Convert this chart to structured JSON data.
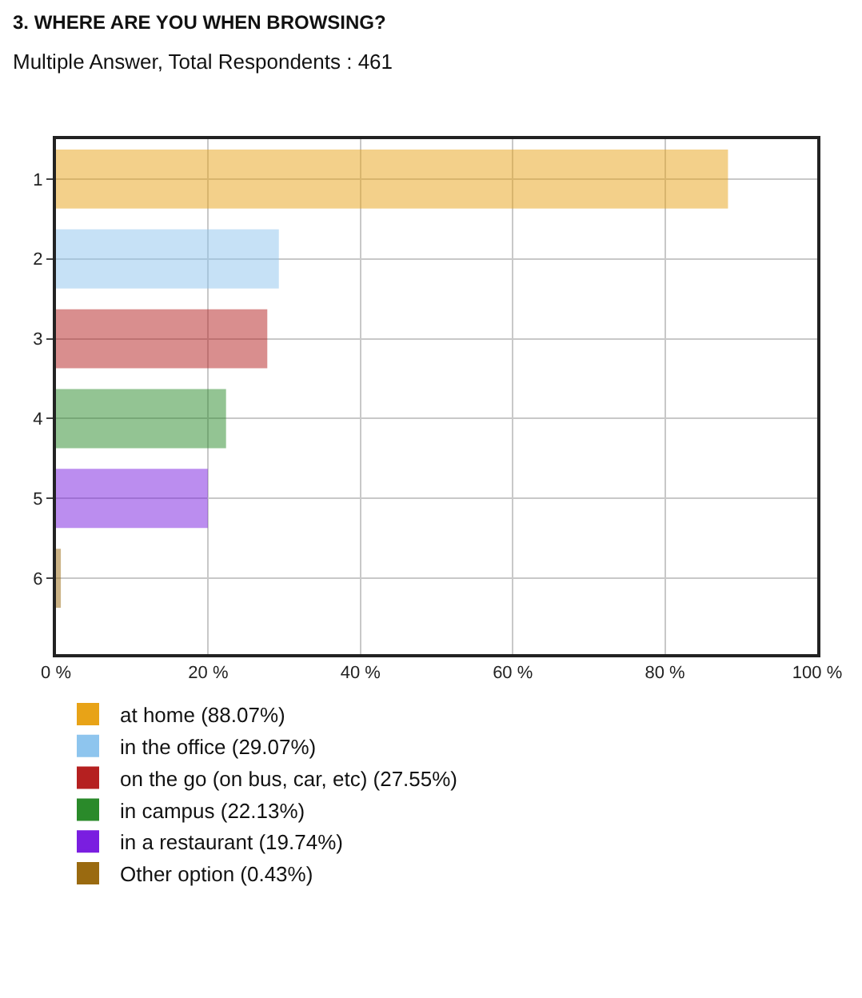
{
  "chart_data": {
    "type": "bar",
    "orientation": "horizontal",
    "title": "3. WHERE ARE YOU WHEN BROWSING?",
    "subtitle": "Multiple Answer, Total Respondents : 461",
    "categories": [
      "1",
      "2",
      "3",
      "4",
      "5",
      "6"
    ],
    "series": [
      {
        "name": "at home (88.07%)",
        "color": "#e8a317",
        "values": [
          88.07,
          null,
          null,
          null,
          null,
          null
        ]
      },
      {
        "name": "in the office (29.07%)",
        "color": "#8ec5ee",
        "values": [
          null,
          29.07,
          null,
          null,
          null,
          null
        ]
      },
      {
        "name": "on the go (on bus, car, etc) (27.55%)",
        "color": "#b52020",
        "values": [
          null,
          null,
          27.55,
          null,
          null,
          null
        ]
      },
      {
        "name": "in campus (22.13%)",
        "color": "#2a8a2a",
        "values": [
          null,
          null,
          null,
          22.13,
          null,
          null
        ]
      },
      {
        "name": "in a restaurant (19.74%)",
        "color": "#7a1ee0",
        "values": [
          null,
          null,
          null,
          null,
          19.74,
          null
        ]
      },
      {
        "name": "Other option (0.43%)",
        "color": "#9a6a10",
        "values": [
          null,
          null,
          null,
          null,
          null,
          0.43
        ]
      }
    ],
    "xlim": [
      0,
      100
    ],
    "xticks": [
      {
        "value": 0,
        "label": "0 %"
      },
      {
        "value": 20,
        "label": "20 %"
      },
      {
        "value": 40,
        "label": "40 %"
      },
      {
        "value": 60,
        "label": "60 %"
      },
      {
        "value": 80,
        "label": "80 %"
      },
      {
        "value": 100,
        "label": "100 %"
      }
    ],
    "grid": true,
    "legend": "bottom"
  }
}
